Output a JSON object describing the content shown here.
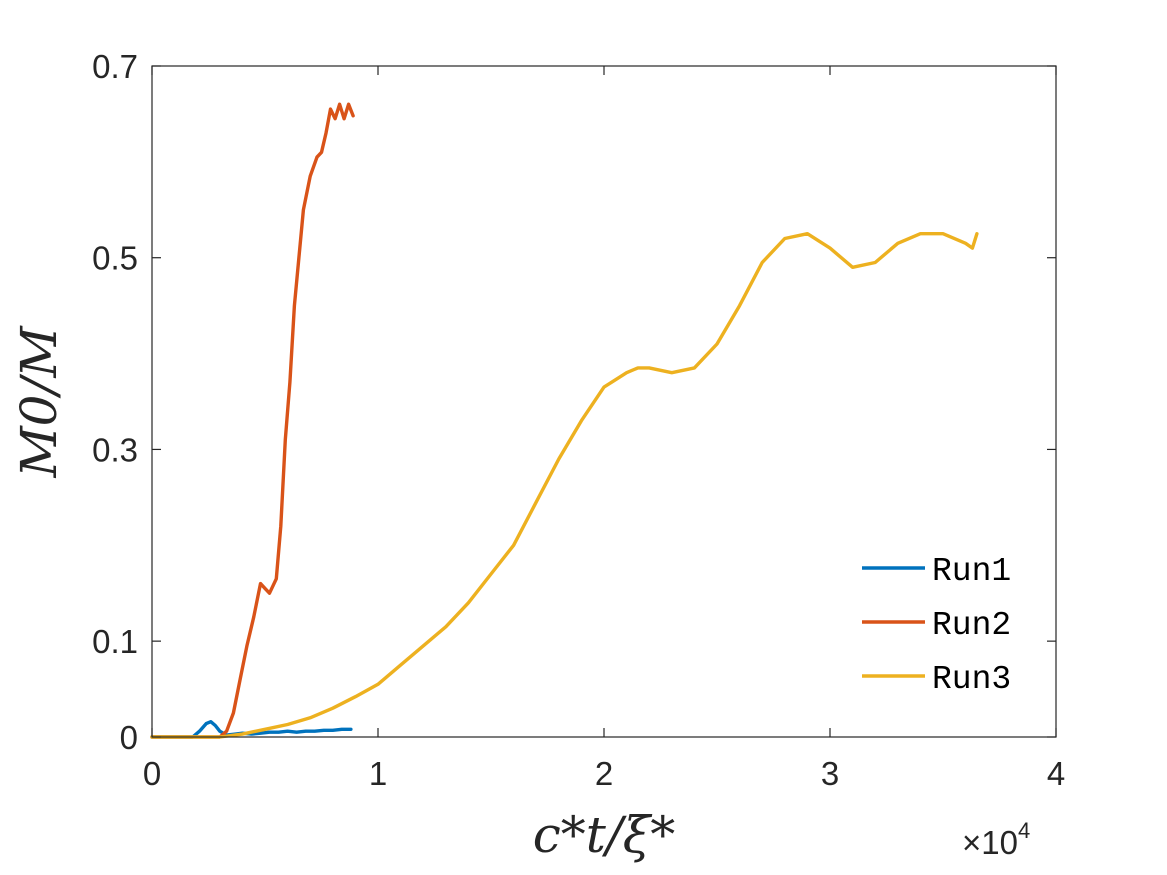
{
  "chart_data": {
    "type": "line",
    "xlabel": "c*t/ξ*",
    "ylabel": "M0/M",
    "xlim": [
      0,
      40000
    ],
    "ylim": [
      0,
      0.7
    ],
    "x_ticks": [
      0,
      10000,
      20000,
      30000,
      40000
    ],
    "x_tick_labels": [
      "0",
      "1",
      "2",
      "3",
      "4"
    ],
    "x_exponent_label": "×10",
    "x_exponent_power": "4",
    "y_ticks": [
      0,
      0.1,
      0.3,
      0.5,
      0.7
    ],
    "y_tick_labels": [
      "0",
      "0.1",
      "0.3",
      "0.5",
      "0.7"
    ],
    "grid": false,
    "box": true,
    "legend_placement": "bottom-right",
    "series": [
      {
        "name": "Run1",
        "color": "#0072BD",
        "x": [
          0,
          1800,
          2100,
          2400,
          2600,
          2800,
          3000,
          3300,
          3700,
          4000,
          4400,
          4800,
          5200,
          5600,
          6000,
          6400,
          6800,
          7200,
          7600,
          8000,
          8400,
          8800
        ],
        "y": [
          0,
          0,
          0.006,
          0.014,
          0.016,
          0.012,
          0.006,
          0.002,
          0.003,
          0.004,
          0.003,
          0.004,
          0.005,
          0.005,
          0.006,
          0.005,
          0.006,
          0.006,
          0.007,
          0.007,
          0.008,
          0.008
        ]
      },
      {
        "name": "Run2",
        "color": "#D95319",
        "x": [
          0,
          3000,
          3300,
          3600,
          3900,
          4200,
          4500,
          4800,
          5000,
          5200,
          5500,
          5700,
          5900,
          6100,
          6300,
          6500,
          6700,
          7000,
          7300,
          7500,
          7700,
          7900,
          8100,
          8300,
          8500,
          8700,
          8900
        ],
        "y": [
          0,
          0,
          0.006,
          0.025,
          0.06,
          0.095,
          0.125,
          0.16,
          0.155,
          0.15,
          0.165,
          0.22,
          0.31,
          0.37,
          0.45,
          0.5,
          0.55,
          0.585,
          0.605,
          0.61,
          0.63,
          0.655,
          0.645,
          0.66,
          0.645,
          0.66,
          0.648
        ]
      },
      {
        "name": "Run3",
        "color": "#EDB120",
        "x": [
          0,
          3000,
          4000,
          5000,
          6000,
          7000,
          8000,
          9000,
          10000,
          11000,
          12000,
          13000,
          14000,
          15000,
          16000,
          17000,
          18000,
          19000,
          20000,
          21000,
          21500,
          22000,
          23000,
          24000,
          25000,
          26000,
          27000,
          28000,
          29000,
          30000,
          31000,
          32000,
          33000,
          34000,
          35000,
          36000,
          36300,
          36500
        ],
        "y": [
          0,
          0,
          0.003,
          0.008,
          0.013,
          0.02,
          0.03,
          0.042,
          0.055,
          0.075,
          0.095,
          0.115,
          0.14,
          0.17,
          0.2,
          0.245,
          0.29,
          0.33,
          0.365,
          0.38,
          0.385,
          0.385,
          0.38,
          0.385,
          0.41,
          0.45,
          0.495,
          0.52,
          0.525,
          0.51,
          0.49,
          0.495,
          0.515,
          0.525,
          0.525,
          0.515,
          0.51,
          0.525
        ]
      }
    ]
  }
}
